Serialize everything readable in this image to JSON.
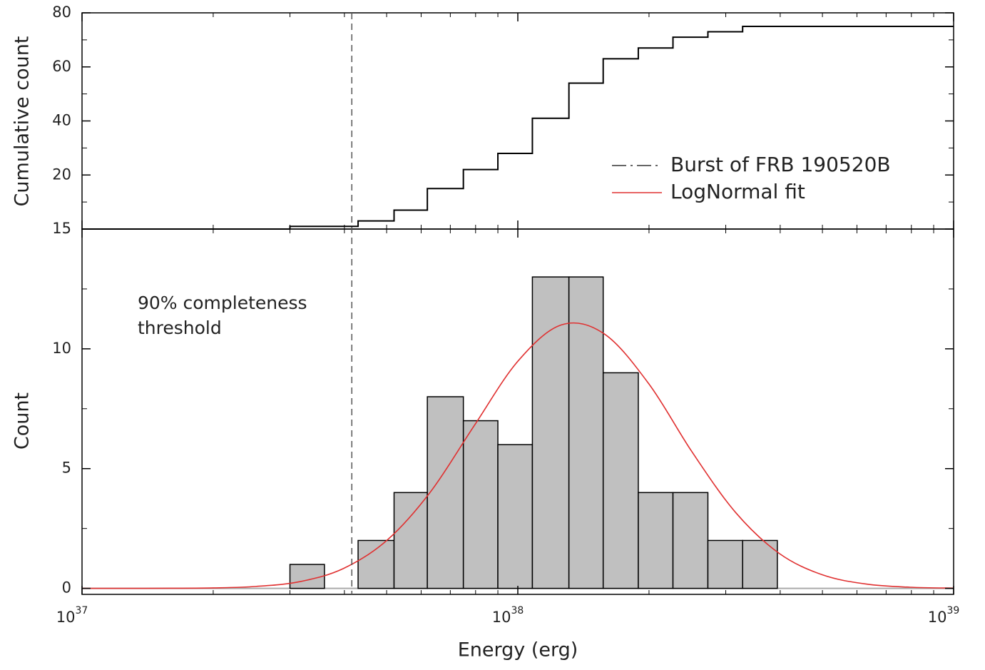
{
  "chart_data": [
    {
      "type": "step",
      "ylabel": "Cumulative count",
      "xscale": "log",
      "xlim": [
        1e+37,
        1e+39
      ],
      "ylim": [
        0,
        80
      ],
      "yticks": [
        20,
        40,
        60,
        80
      ],
      "yminorticks": [
        10,
        30,
        50,
        70
      ],
      "color": "#000000",
      "x": [
        1e+37,
        3e+37,
        4.3e+37,
        5.2e+37,
        6.2e+37,
        7.5e+37,
        9e+37,
        1.08e+38,
        1.31e+38,
        1.57e+38,
        1.89e+38,
        2.27e+38,
        2.73e+38,
        3.28e+38,
        1e+39
      ],
      "values": [
        0,
        1,
        3,
        7,
        15,
        22,
        28,
        41,
        54,
        63,
        67,
        71,
        73,
        75,
        75
      ],
      "series": [
        {
          "name": "Burst of FRB 190520B",
          "type": "vline",
          "color": "#555555",
          "x": 4.16e+37
        }
      ],
      "legend": "upper right"
    },
    {
      "type": "histogram",
      "ylabel": "Count",
      "xlabel": "Energy (erg)",
      "xscale": "log",
      "xlim": [
        1e+37,
        1e+39
      ],
      "xticks": [
        {
          "value": 1e+37,
          "label": "10",
          "exponent": "37"
        },
        {
          "value": 1e+38,
          "label": "10",
          "exponent": "38"
        },
        {
          "value": 1e+39,
          "label": "10",
          "exponent": "39"
        }
      ],
      "xminorticks": [
        2e+37,
        3e+37,
        4e+37,
        5e+37,
        6e+37,
        7e+37,
        8e+37,
        9e+37,
        2e+38,
        3e+38,
        4e+38,
        5e+38,
        6e+38,
        7e+38,
        8e+38,
        9e+38
      ],
      "ylim": [
        -0.25,
        15
      ],
      "yticks": [
        0,
        5,
        10,
        15
      ],
      "yminorticks": [
        2.5,
        7.5,
        12.5
      ],
      "color": "#c0c0c0",
      "bins": [
        3e+37,
        3.6e+37,
        4.3e+37,
        5.2e+37,
        6.2e+37,
        7.5e+37,
        9e+37,
        1.08e+38,
        1.31e+38,
        1.57e+38,
        1.89e+38,
        2.27e+38,
        2.73e+38,
        3.28e+38,
        3.94e+38
      ],
      "counts": [
        1,
        0,
        2,
        4,
        8,
        7,
        6,
        13,
        13,
        9,
        4,
        4,
        2,
        2
      ],
      "series": [
        {
          "name": "LogNormal fit",
          "color": "#e03030",
          "x": [
            1e+37,
            1.26e+37,
            1.58e+37,
            2e+37,
            2.51e+37,
            3.16e+37,
            3.98e+37,
            5.01e+37,
            6.31e+37,
            7.94e+37,
            1e+38,
            1.26e+38,
            1.58e+38,
            2e+38,
            2.51e+38,
            3.16e+38,
            3.98e+38,
            5.01e+38,
            6.31e+38,
            7.94e+38,
            1e+39
          ],
          "values": [
            0,
            0.0006,
            0.004,
            0.019,
            0.081,
            0.28,
            0.83,
            2.01,
            4.04,
            6.79,
            9.48,
            11.0,
            10.62,
            8.53,
            5.7,
            3.17,
            1.46,
            0.56,
            0.18,
            0.048,
            0.01
          ]
        }
      ],
      "annotation": [
        "90% completeness",
        "threshold"
      ]
    }
  ]
}
